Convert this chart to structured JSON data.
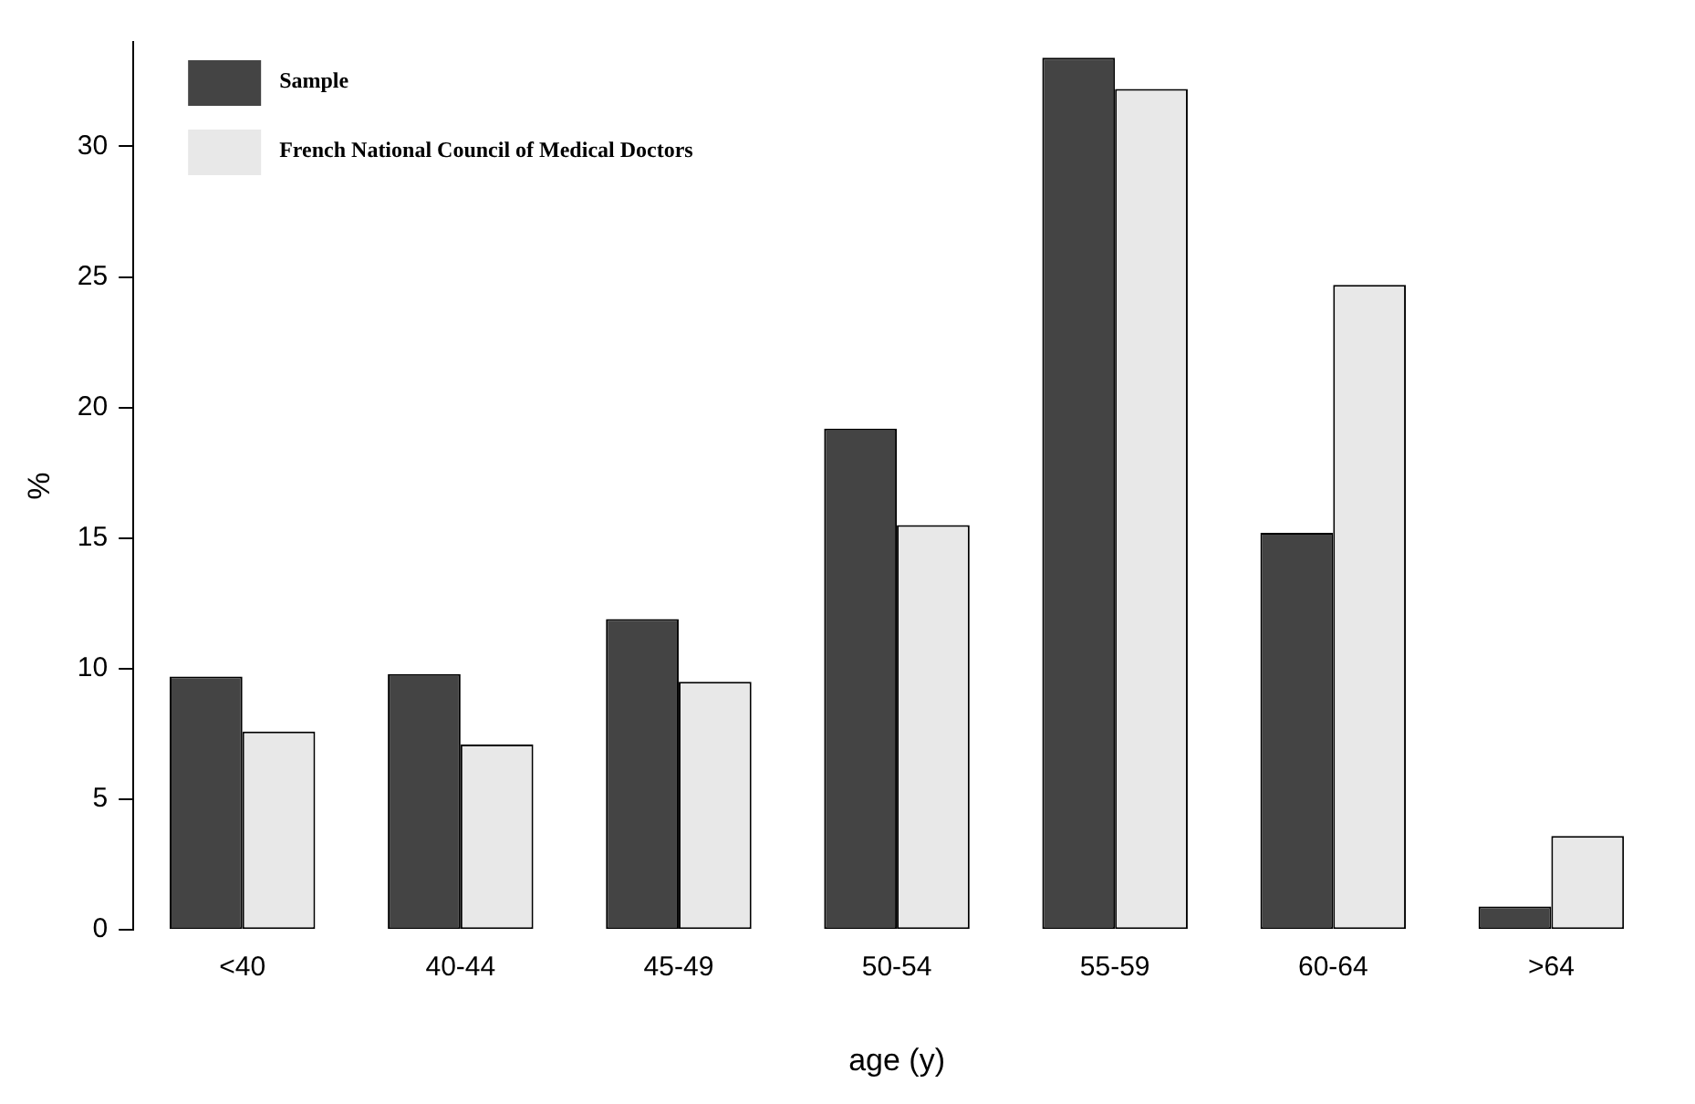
{
  "chart_data": {
    "type": "bar",
    "xlabel": "age (y)",
    "ylabel": "%",
    "categories": [
      "<40",
      "40-44",
      "45-49",
      "50-54",
      "55-59",
      "60-64",
      ">64"
    ],
    "series": [
      {
        "name": "Sample",
        "color": "#444444",
        "values": [
          9.7,
          9.8,
          11.9,
          19.2,
          33.4,
          15.2,
          0.9
        ]
      },
      {
        "name": "French National Council of Medical Doctors",
        "color": "#e8e8e8",
        "values": [
          7.6,
          7.1,
          9.5,
          15.5,
          32.2,
          24.7,
          3.6
        ]
      }
    ],
    "ylim": [
      0,
      34
    ],
    "yticks": [
      0,
      5,
      10,
      15,
      20,
      25,
      30
    ],
    "grid": false,
    "legend": "top left"
  }
}
